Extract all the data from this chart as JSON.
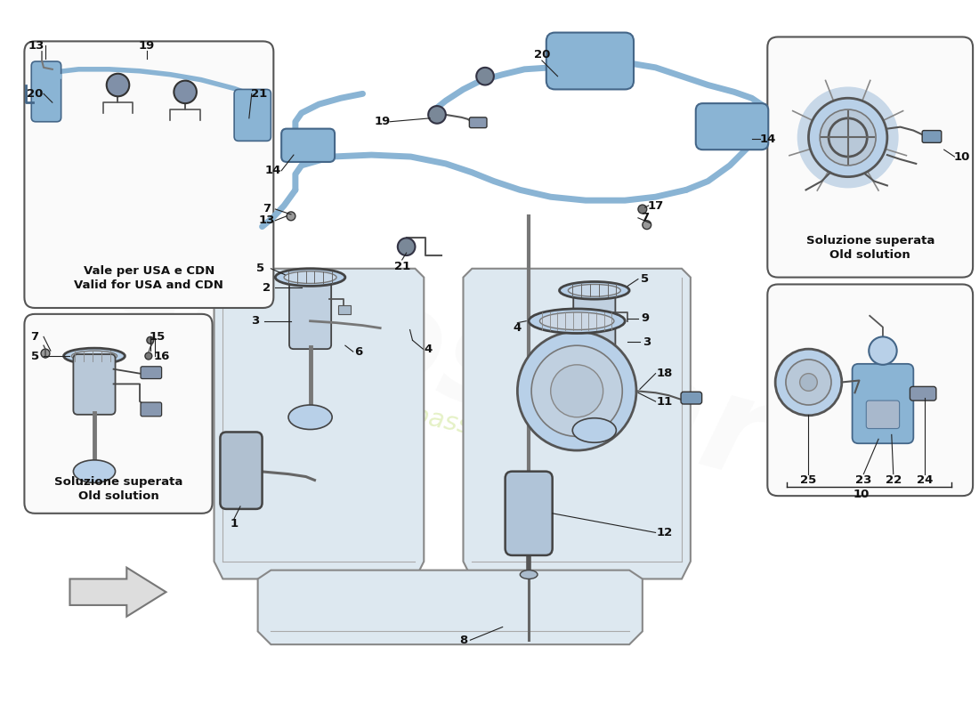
{
  "bg_color": "#ffffff",
  "part_blue": "#8ab4d4",
  "part_blue_light": "#b8d0e8",
  "part_blue_dark": "#5a7fa0",
  "tank_fill": "#dde8f0",
  "tank_edge": "#888888",
  "line_col": "#333333",
  "leader_col": "#222222",
  "box_edge": "#555555",
  "watermark_col": "#d4e8a0",
  "watermark_alpha": 0.6,
  "box1_label1": "Vale per USA e CDN",
  "box1_label2": "Valid for USA and CDN",
  "box2_label1": "Soluzione superata",
  "box2_label2": "Old solution",
  "box3t_label1": "Soluzione superata",
  "box3t_label2": "Old solution"
}
